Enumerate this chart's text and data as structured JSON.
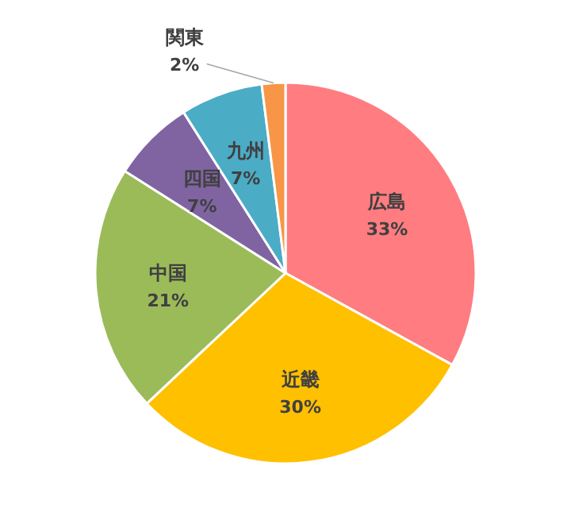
{
  "chart_data": {
    "type": "pie",
    "categories": [
      "広島",
      "近畿",
      "中国",
      "四国",
      "九州",
      "関東"
    ],
    "values": [
      33,
      30,
      21,
      7,
      7,
      2
    ],
    "value_labels": [
      "33%",
      "30%",
      "21%",
      "7%",
      "7%",
      "2%"
    ],
    "colors": [
      "#ff7c80",
      "#ffc000",
      "#9bbb59",
      "#8064a2",
      "#4bacc6",
      "#f79646"
    ]
  }
}
